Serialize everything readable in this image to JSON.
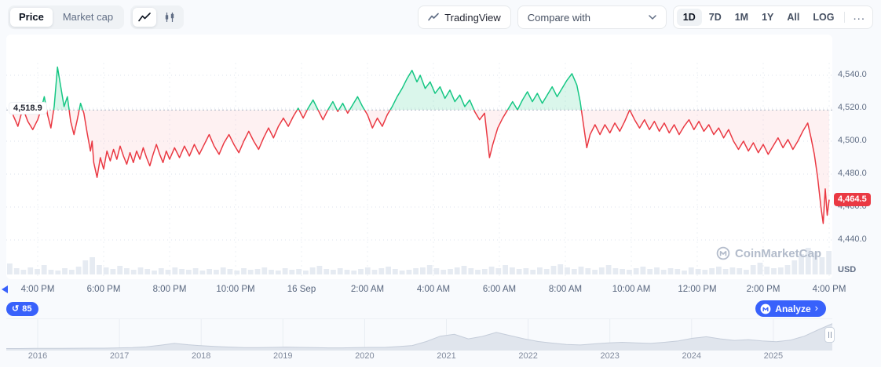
{
  "toolbar": {
    "price": "Price",
    "market_cap": "Market cap",
    "tradingview": "TradingView",
    "compare_with": "Compare with",
    "ranges": [
      "1D",
      "7D",
      "1M",
      "1Y",
      "All",
      "LOG"
    ],
    "selected_range": "1D",
    "more": "..."
  },
  "watermark": "CoinMarketCap",
  "footer": {
    "history_count": "85",
    "analyze": "Analyze",
    "analyze_chevron": "›"
  },
  "colors": {
    "up": "#16c784",
    "down": "#ea3943",
    "accent": "#3861fb",
    "up_fill": "rgba(22,199,132,0.16)",
    "down_fill": "rgba(234,57,67,0.07)",
    "baseline_line": "#aab4c4",
    "volume_bar": "#e6ebf2",
    "mini_fill": "#e0e5ed",
    "mini_stroke": "#c5cdda"
  },
  "chart_data": {
    "type": "line",
    "baseline": 4518.9,
    "baseline_label": "4,518.9",
    "current": 4464.5,
    "current_label": "4,464.5",
    "unit": "USD",
    "ylim": [
      4435,
      4560
    ],
    "y_ticks": [
      4540,
      4520,
      4500,
      4480,
      4460,
      4440
    ],
    "y_tick_labels": [
      "4,540.0",
      "4,520.0",
      "4,500.0",
      "4,480.0",
      "4,460.0",
      "4,440.0"
    ],
    "x_tick_labels": [
      "4:00 PM",
      "6:00 PM",
      "8:00 PM",
      "10:00 PM",
      "16 Sep",
      "2:00 AM",
      "4:00 AM",
      "6:00 AM",
      "8:00 AM",
      "10:00 AM",
      "12:00 PM",
      "2:00 PM",
      "4:00 PM"
    ],
    "series": [
      [
        -0.75,
        4516
      ],
      [
        -0.6,
        4509
      ],
      [
        -0.45,
        4520
      ],
      [
        -0.3,
        4512
      ],
      [
        -0.15,
        4507
      ],
      [
        0,
        4513
      ],
      [
        0.1,
        4519
      ],
      [
        0.2,
        4527
      ],
      [
        0.3,
        4516
      ],
      [
        0.4,
        4508
      ],
      [
        0.5,
        4521
      ],
      [
        0.6,
        4545
      ],
      [
        0.7,
        4533
      ],
      [
        0.8,
        4521
      ],
      [
        0.9,
        4527
      ],
      [
        1.0,
        4512
      ],
      [
        1.1,
        4504
      ],
      [
        1.2,
        4513
      ],
      [
        1.3,
        4523
      ],
      [
        1.4,
        4517
      ],
      [
        1.5,
        4505
      ],
      [
        1.6,
        4494
      ],
      [
        1.65,
        4500
      ],
      [
        1.7,
        4487
      ],
      [
        1.8,
        4478
      ],
      [
        1.9,
        4490
      ],
      [
        2.0,
        4483
      ],
      [
        2.1,
        4494
      ],
      [
        2.2,
        4488
      ],
      [
        2.3,
        4495
      ],
      [
        2.4,
        4489
      ],
      [
        2.5,
        4497
      ],
      [
        2.6,
        4491
      ],
      [
        2.7,
        4486
      ],
      [
        2.8,
        4493
      ],
      [
        2.9,
        4487
      ],
      [
        3.0,
        4494
      ],
      [
        3.1,
        4489
      ],
      [
        3.2,
        4496
      ],
      [
        3.3,
        4490
      ],
      [
        3.4,
        4485
      ],
      [
        3.5,
        4492
      ],
      [
        3.6,
        4498
      ],
      [
        3.7,
        4492
      ],
      [
        3.8,
        4487
      ],
      [
        3.9,
        4494
      ],
      [
        4.0,
        4489
      ],
      [
        4.15,
        4496
      ],
      [
        4.3,
        4490
      ],
      [
        4.45,
        4497
      ],
      [
        4.6,
        4491
      ],
      [
        4.75,
        4498
      ],
      [
        4.9,
        4492
      ],
      [
        5.05,
        4498
      ],
      [
        5.2,
        4504
      ],
      [
        5.35,
        4497
      ],
      [
        5.5,
        4492
      ],
      [
        5.65,
        4499
      ],
      [
        5.8,
        4504
      ],
      [
        5.95,
        4498
      ],
      [
        6.1,
        4493
      ],
      [
        6.25,
        4500
      ],
      [
        6.4,
        4506
      ],
      [
        6.55,
        4500
      ],
      [
        6.7,
        4495
      ],
      [
        6.85,
        4502
      ],
      [
        7.0,
        4508
      ],
      [
        7.15,
        4502
      ],
      [
        7.3,
        4509
      ],
      [
        7.45,
        4514
      ],
      [
        7.6,
        4509
      ],
      [
        7.75,
        4515
      ],
      [
        7.9,
        4520
      ],
      [
        8.05,
        4514
      ],
      [
        8.2,
        4520
      ],
      [
        8.35,
        4525
      ],
      [
        8.5,
        4519
      ],
      [
        8.65,
        4513
      ],
      [
        8.8,
        4519
      ],
      [
        8.95,
        4524
      ],
      [
        9.1,
        4518
      ],
      [
        9.25,
        4523
      ],
      [
        9.4,
        4517
      ],
      [
        9.55,
        4522
      ],
      [
        9.7,
        4527
      ],
      [
        9.85,
        4521
      ],
      [
        10.0,
        4516
      ],
      [
        10.15,
        4508
      ],
      [
        10.3,
        4514
      ],
      [
        10.45,
        4509
      ],
      [
        10.6,
        4516
      ],
      [
        10.75,
        4521
      ],
      [
        10.9,
        4527
      ],
      [
        11.05,
        4532
      ],
      [
        11.2,
        4538
      ],
      [
        11.35,
        4543
      ],
      [
        11.5,
        4536
      ],
      [
        11.6,
        4540
      ],
      [
        11.75,
        4532
      ],
      [
        11.9,
        4536
      ],
      [
        12.05,
        4529
      ],
      [
        12.2,
        4533
      ],
      [
        12.35,
        4526
      ],
      [
        12.5,
        4531
      ],
      [
        12.65,
        4524
      ],
      [
        12.8,
        4528
      ],
      [
        12.95,
        4521
      ],
      [
        13.1,
        4525
      ],
      [
        13.25,
        4518
      ],
      [
        13.4,
        4513
      ],
      [
        13.55,
        4517
      ],
      [
        13.7,
        4490
      ],
      [
        13.8,
        4498
      ],
      [
        13.95,
        4508
      ],
      [
        14.1,
        4514
      ],
      [
        14.25,
        4519
      ],
      [
        14.4,
        4524
      ],
      [
        14.55,
        4519
      ],
      [
        14.7,
        4525
      ],
      [
        14.85,
        4530
      ],
      [
        15.0,
        4524
      ],
      [
        15.15,
        4529
      ],
      [
        15.3,
        4523
      ],
      [
        15.45,
        4528
      ],
      [
        15.6,
        4533
      ],
      [
        15.75,
        4527
      ],
      [
        15.9,
        4532
      ],
      [
        16.05,
        4537
      ],
      [
        16.2,
        4541
      ],
      [
        16.35,
        4534
      ],
      [
        16.45,
        4524
      ],
      [
        16.55,
        4510
      ],
      [
        16.65,
        4496
      ],
      [
        16.75,
        4504
      ],
      [
        16.9,
        4510
      ],
      [
        17.05,
        4504
      ],
      [
        17.2,
        4510
      ],
      [
        17.35,
        4505
      ],
      [
        17.5,
        4511
      ],
      [
        17.65,
        4506
      ],
      [
        17.8,
        4512
      ],
      [
        17.95,
        4519
      ],
      [
        18.1,
        4513
      ],
      [
        18.25,
        4508
      ],
      [
        18.4,
        4513
      ],
      [
        18.55,
        4507
      ],
      [
        18.7,
        4512
      ],
      [
        18.85,
        4506
      ],
      [
        19.0,
        4511
      ],
      [
        19.15,
        4505
      ],
      [
        19.3,
        4510
      ],
      [
        19.45,
        4504
      ],
      [
        19.6,
        4509
      ],
      [
        19.75,
        4513
      ],
      [
        19.9,
        4507
      ],
      [
        20.05,
        4512
      ],
      [
        20.2,
        4506
      ],
      [
        20.35,
        4510
      ],
      [
        20.5,
        4504
      ],
      [
        20.65,
        4508
      ],
      [
        20.8,
        4502
      ],
      [
        20.95,
        4507
      ],
      [
        21.1,
        4500
      ],
      [
        21.25,
        4495
      ],
      [
        21.4,
        4500
      ],
      [
        21.55,
        4494
      ],
      [
        21.7,
        4499
      ],
      [
        21.85,
        4493
      ],
      [
        22.0,
        4498
      ],
      [
        22.15,
        4492
      ],
      [
        22.3,
        4497
      ],
      [
        22.45,
        4502
      ],
      [
        22.6,
        4496
      ],
      [
        22.75,
        4501
      ],
      [
        22.9,
        4495
      ],
      [
        23.05,
        4500
      ],
      [
        23.2,
        4506
      ],
      [
        23.35,
        4511
      ],
      [
        23.45,
        4502
      ],
      [
        23.55,
        4492
      ],
      [
        23.65,
        4478
      ],
      [
        23.75,
        4460
      ],
      [
        23.82,
        4450
      ],
      [
        23.88,
        4471
      ],
      [
        23.94,
        4455
      ],
      [
        24.0,
        4464.5
      ]
    ],
    "volumes": [
      14,
      8,
      6,
      9,
      7,
      12,
      6,
      5,
      8,
      6,
      10,
      18,
      22,
      12,
      9,
      7,
      11,
      8,
      6,
      9,
      7,
      5,
      8,
      6,
      9,
      7,
      6,
      8,
      5,
      7,
      6,
      9,
      7,
      5,
      8,
      6,
      7,
      9,
      6,
      5,
      8,
      6,
      7,
      5,
      9,
      11,
      7,
      6,
      8,
      6,
      5,
      7,
      9,
      6,
      8,
      10,
      7,
      5,
      6,
      8,
      9,
      12,
      8,
      6,
      7,
      9,
      11,
      8,
      6,
      7,
      10,
      8,
      12,
      9,
      7,
      8,
      6,
      9,
      7,
      11,
      13,
      9,
      7,
      10,
      8,
      6,
      9,
      12,
      8,
      7,
      6,
      8,
      10,
      7,
      9,
      6,
      8,
      7,
      5,
      9,
      7,
      6,
      8,
      10,
      7,
      9,
      8,
      6,
      12,
      15,
      10,
      8,
      9,
      12,
      18,
      26,
      34,
      28,
      22,
      30
    ],
    "mini_years": [
      "2016",
      "2017",
      "2018",
      "2019",
      "2020",
      "2021",
      "2022",
      "2023",
      "2024",
      "2025"
    ],
    "mini_values": [
      0.015,
      0.015,
      0.02,
      0.02,
      0.02,
      0.025,
      0.03,
      0.03,
      0.04,
      0.05,
      0.08,
      0.14,
      0.21,
      0.16,
      0.12,
      0.09,
      0.07,
      0.05,
      0.05,
      0.06,
      0.07,
      0.06,
      0.05,
      0.04,
      0.04,
      0.05,
      0.06,
      0.06,
      0.09,
      0.13,
      0.28,
      0.48,
      0.55,
      0.38,
      0.47,
      0.62,
      0.5,
      0.38,
      0.28,
      0.22,
      0.17,
      0.15,
      0.19,
      0.23,
      0.25,
      0.23,
      0.21,
      0.25,
      0.3,
      0.4,
      0.46,
      0.38,
      0.32,
      0.35,
      0.3,
      0.27,
      0.33,
      0.48,
      0.72,
      0.95
    ]
  }
}
